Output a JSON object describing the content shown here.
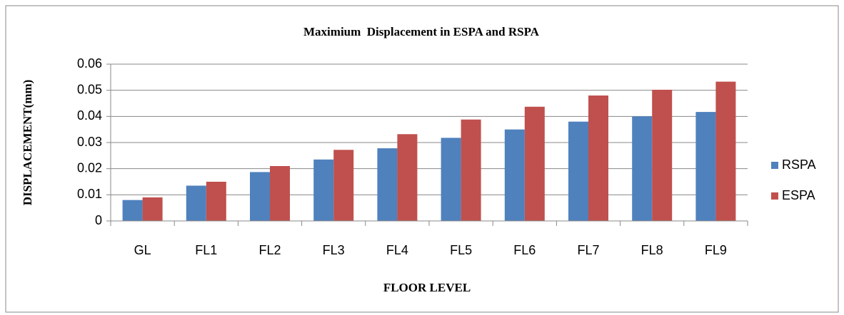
{
  "chart_data": {
    "type": "bar",
    "title": "Maximium  Displacement in ESPA and RSPA",
    "x_label": "FLOOR LEVEL",
    "y_label": "DISPLACEMENT(mm)",
    "categories": [
      "GL",
      "FL1",
      "FL2",
      "FL3",
      "FL4",
      "FL5",
      "FL6",
      "FL7",
      "FL8",
      "FL9"
    ],
    "series": [
      {
        "name": "RSPA",
        "color": "#4f81bd",
        "values": [
          0.008,
          0.0135,
          0.0187,
          0.0235,
          0.0278,
          0.0318,
          0.035,
          0.038,
          0.04,
          0.0417
        ]
      },
      {
        "name": "ESPA",
        "color": "#c0504d",
        "values": [
          0.009,
          0.015,
          0.021,
          0.0272,
          0.0332,
          0.0388,
          0.0437,
          0.048,
          0.0502,
          0.0533
        ]
      }
    ],
    "ylim": [
      0,
      0.06
    ],
    "yticks": [
      0,
      0.01,
      0.02,
      0.03,
      0.04,
      0.05,
      0.06
    ],
    "grid": true,
    "legend": "right"
  }
}
